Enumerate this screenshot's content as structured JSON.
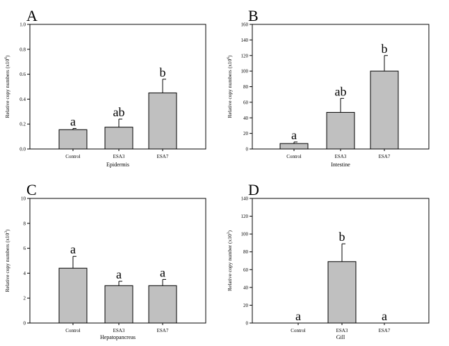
{
  "figure": {
    "background": "#ffffff",
    "bar_fill": "#c0c0c0",
    "bar_stroke": "#000000"
  },
  "chart_data": [
    {
      "panel": "A",
      "type": "bar",
      "categories": [
        "Control",
        "ESA3",
        "ESA7"
      ],
      "values": [
        0.155,
        0.175,
        0.45
      ],
      "errors": [
        0.01,
        0.065,
        0.11
      ],
      "significance": [
        "a",
        "ab",
        "b"
      ],
      "xlabel": "Epidermis",
      "ylabel_main": "Relative copy numbers (x10",
      "ylabel_sup": "6",
      "ylabel_end": ")",
      "ylim": [
        0,
        1.0
      ],
      "yticks": [
        "0.0",
        "0.2",
        "0.4",
        "0.6",
        "0.8",
        "1.0"
      ],
      "grid": false
    },
    {
      "panel": "B",
      "type": "bar",
      "categories": [
        "Control",
        "ESA3",
        "ESA7"
      ],
      "values": [
        7,
        47,
        100
      ],
      "errors": [
        2,
        18,
        20
      ],
      "significance": [
        "a",
        "ab",
        "b"
      ],
      "xlabel": "Intestine",
      "ylabel_main": "Relative copy numbers (x10",
      "ylabel_sup": "6",
      "ylabel_end": ")",
      "ylim": [
        0,
        160
      ],
      "yticks": [
        "0",
        "20",
        "40",
        "60",
        "80",
        "100",
        "120",
        "140",
        "160"
      ],
      "grid": false
    },
    {
      "panel": "C",
      "type": "bar",
      "categories": [
        "Control",
        "ESA3",
        "ESA7"
      ],
      "values": [
        4.4,
        3.0,
        3.0
      ],
      "errors": [
        0.95,
        0.35,
        0.5
      ],
      "significance": [
        "a",
        "a",
        "a"
      ],
      "xlabel": "Hepatopancreas",
      "ylabel_main": "Relative copy numbers (x10",
      "ylabel_sup": "3",
      "ylabel_end": ")",
      "ylim": [
        0,
        10
      ],
      "yticks": [
        "0",
        "2",
        "4",
        "6",
        "8",
        "10"
      ],
      "grid": false
    },
    {
      "panel": "D",
      "type": "bar",
      "categories": [
        "Control",
        "ESA3",
        "ESA7"
      ],
      "values": [
        0,
        69,
        0
      ],
      "errors": [
        0,
        20,
        0
      ],
      "significance": [
        "a",
        "b",
        "a"
      ],
      "xlabel": "Gill",
      "ylabel_main": "Relative copy number (x10",
      "ylabel_sup": "3",
      "ylabel_end": ")",
      "ylim": [
        0,
        140
      ],
      "yticks": [
        "0",
        "20",
        "40",
        "60",
        "80",
        "100",
        "120",
        "140"
      ],
      "grid": false
    }
  ]
}
